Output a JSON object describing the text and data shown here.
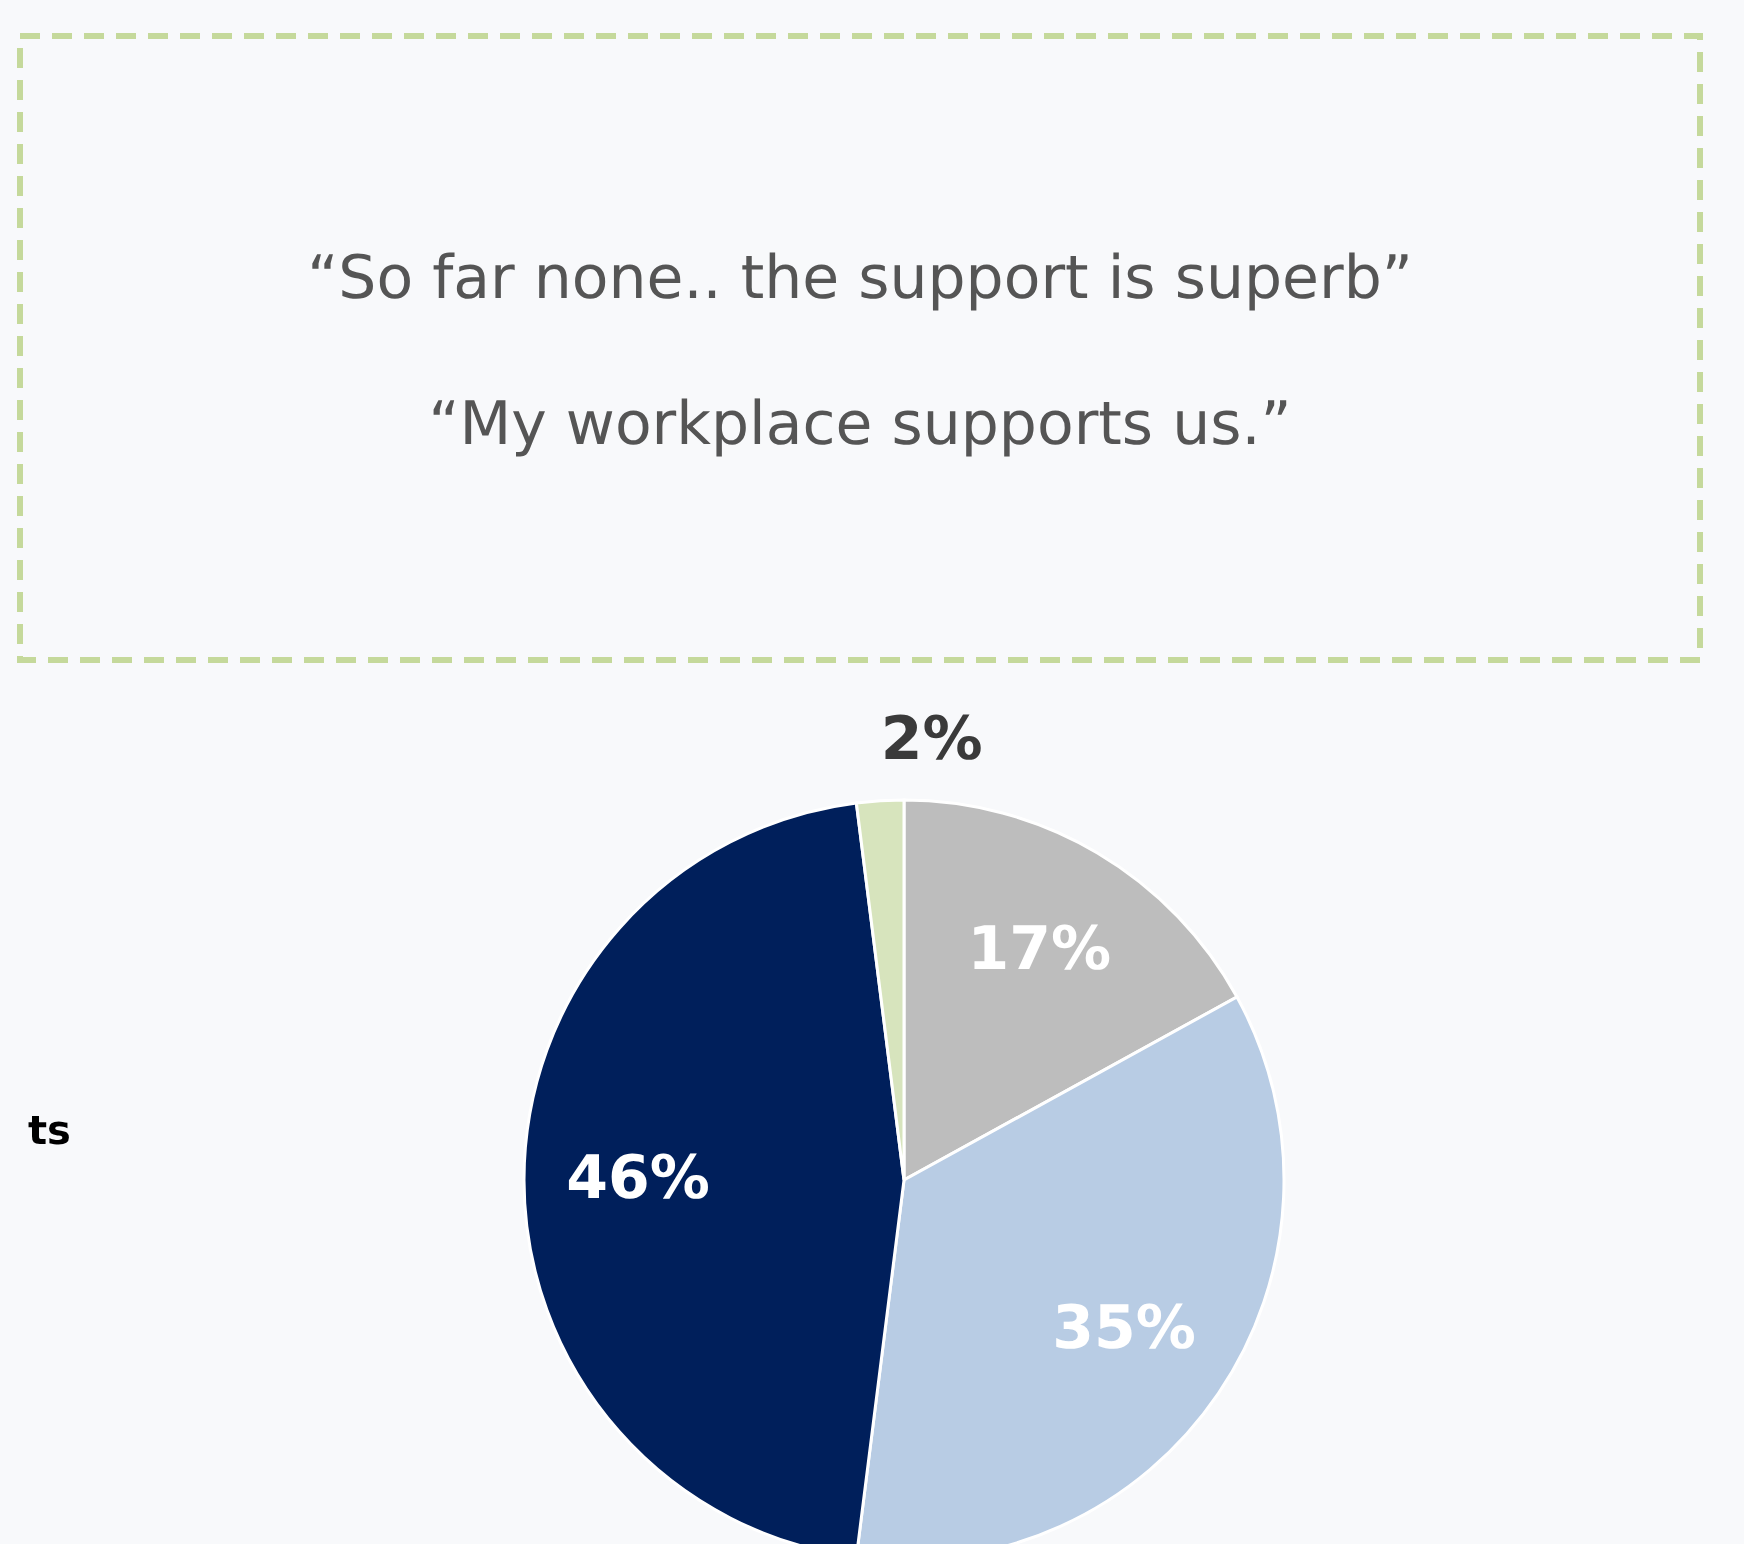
{
  "chart_data": {
    "type": "pie",
    "categories": [
      null,
      null,
      null,
      null
    ],
    "values": [
      17,
      35,
      46,
      2
    ],
    "value_labels": [
      "17%",
      "35%",
      "46%",
      "2%"
    ],
    "colors": [
      "#bdbdbd",
      "#b8cce4",
      "#001f5b",
      "#d7e4bd"
    ],
    "annotations": [
      "“So far none.. the support is superb”",
      "“My workplace supports us.”",
      "ts"
    ]
  }
}
